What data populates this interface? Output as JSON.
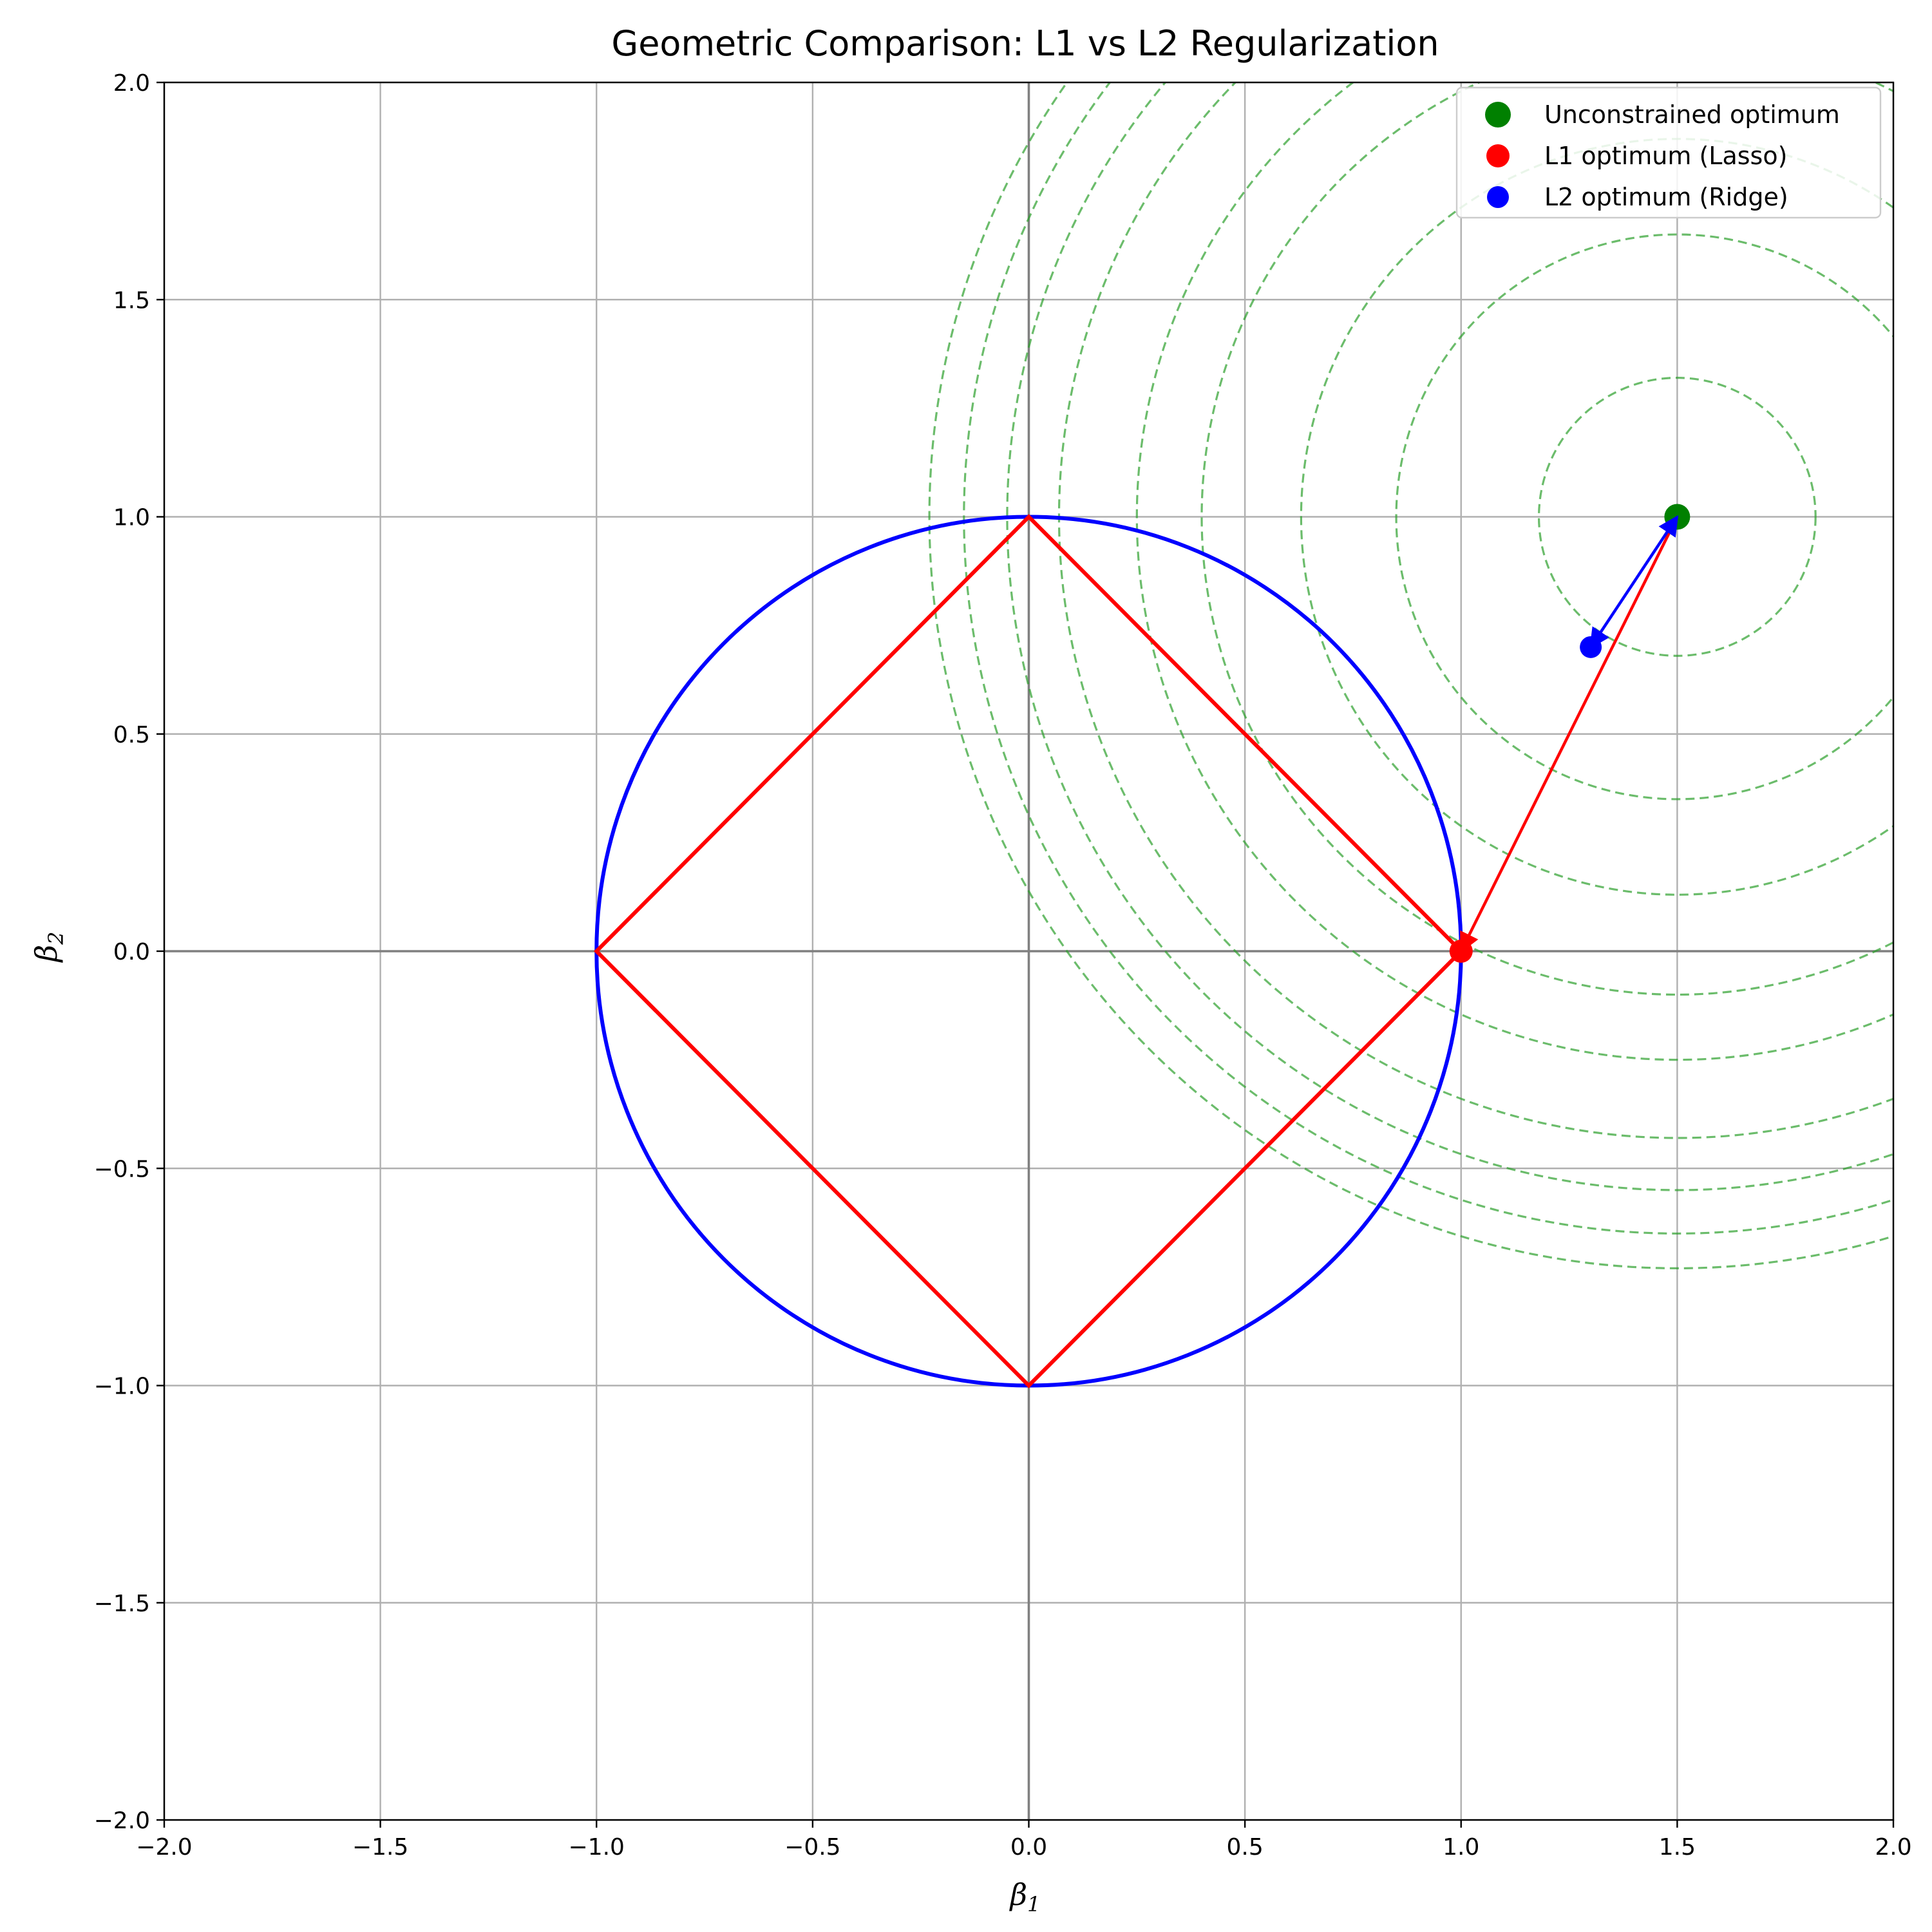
{
  "chart_data": {
    "type": "scatter",
    "title": "Geometric Comparison: L1 vs L2 Regularization",
    "xlabel": "β",
    "xlabel_sub": "1",
    "ylabel": "β",
    "ylabel_sub": "2",
    "xlim": [
      -2.0,
      2.0
    ],
    "ylim": [
      -2.0,
      2.0
    ],
    "xticks": [
      -2.0,
      -1.5,
      -1.0,
      -0.5,
      0.0,
      0.5,
      1.0,
      1.5,
      2.0
    ],
    "yticks": [
      -2.0,
      -1.5,
      -1.0,
      -0.5,
      0.0,
      0.5,
      1.0,
      1.5,
      2.0
    ],
    "xtick_labels": [
      "−2.0",
      "−1.5",
      "−1.0",
      "−0.5",
      "0.0",
      "0.5",
      "1.0",
      "1.5",
      "2.0"
    ],
    "ytick_labels": [
      "−2.0",
      "−1.5",
      "−1.0",
      "−0.5",
      "0.0",
      "0.5",
      "1.0",
      "1.5",
      "2.0"
    ],
    "grid": true,
    "legend_position": "top-right",
    "l1_constraint": {
      "shape": "diamond",
      "vertices": [
        [
          1,
          0
        ],
        [
          0,
          1
        ],
        [
          -1,
          0
        ],
        [
          0,
          -1
        ]
      ],
      "color": "#ff0000"
    },
    "l2_constraint": {
      "shape": "circle",
      "center": [
        0,
        0
      ],
      "radius": 1.0,
      "color": "#0000ff"
    },
    "contours": {
      "center": [
        1.5,
        1.0
      ],
      "radii": [
        0.32,
        0.65,
        0.87,
        1.1,
        1.25,
        1.43,
        1.55,
        1.65,
        1.73
      ],
      "color": "#2ca02c",
      "style": "dashed"
    },
    "points": [
      {
        "name": "Unconstrained optimum",
        "x": 1.5,
        "y": 1.0,
        "color": "#008000"
      },
      {
        "name": "L1 optimum (Lasso)",
        "x": 1.0,
        "y": 0.0,
        "color": "#ff0000"
      },
      {
        "name": "L2 optimum (Ridge)",
        "x": 1.3,
        "y": 0.7,
        "color": "#0000ff"
      }
    ],
    "arrows": [
      {
        "from": [
          1.5,
          1.0
        ],
        "to": [
          1.0,
          0.0
        ],
        "color": "#ff0000"
      },
      {
        "from": [
          1.3,
          0.7
        ],
        "to": [
          1.5,
          1.0
        ],
        "color": "#0000ff"
      }
    ]
  }
}
